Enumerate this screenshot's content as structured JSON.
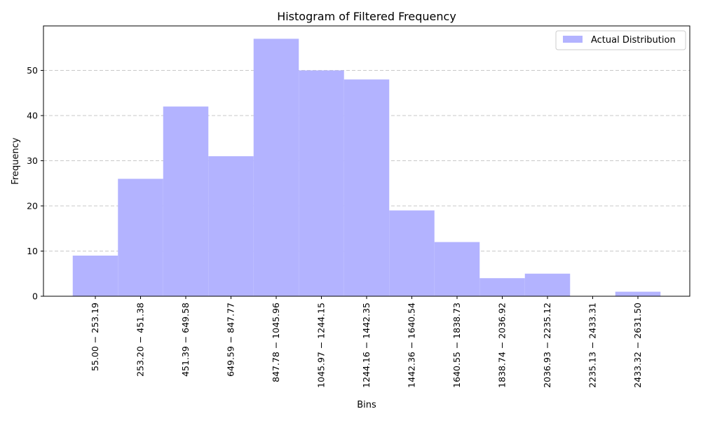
{
  "chart_data": {
    "type": "bar",
    "title": "Histogram of Filtered Frequency",
    "xlabel": "Bins",
    "ylabel": "Frequency",
    "categories": [
      "55.00 − 253.19",
      "253.20 − 451.38",
      "451.39 − 649.58",
      "649.59 − 847.77",
      "847.78 − 1045.96",
      "1045.97 − 1244.15",
      "1244.16 − 1442.35",
      "1442.36 − 1640.54",
      "1640.55 − 1838.73",
      "1838.74 − 2036.92",
      "2036.93 − 2235.12",
      "2235.13 − 2433.31",
      "2433.32 − 2631.50"
    ],
    "series": [
      {
        "name": "Actual Distribution",
        "values": [
          9,
          26,
          42,
          31,
          57,
          50,
          48,
          19,
          12,
          4,
          5,
          0,
          1
        ]
      }
    ],
    "ylim": [
      0,
      59.85
    ],
    "yticks": [
      0,
      10,
      20,
      30,
      40,
      50
    ],
    "grid": "y-dashed",
    "legend_position": "top-right",
    "bar_color": "#b3b3ff"
  }
}
